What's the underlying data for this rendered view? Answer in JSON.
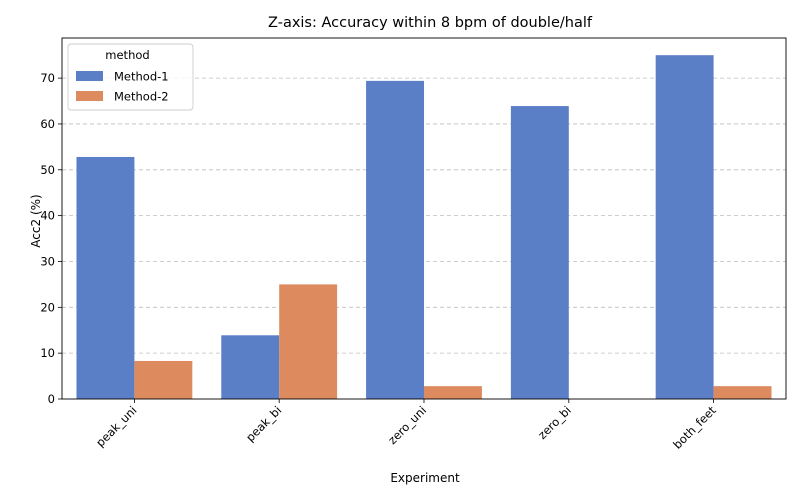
{
  "chart_data": {
    "type": "bar",
    "title": "Z-axis: Accuracy within 8 bpm of double/half",
    "xlabel": "Experiment",
    "ylabel": "Acc2 (%)",
    "categories": [
      "peak_uni",
      "peak_bi",
      "zero_uni",
      "zero_bi",
      "both_feet"
    ],
    "series": [
      {
        "name": "Method-1",
        "values": [
          52.8,
          13.9,
          69.4,
          63.9,
          75.0
        ],
        "color": "#5a7fc6"
      },
      {
        "name": "Method-2",
        "values": [
          8.3,
          25.0,
          2.8,
          0.0,
          2.8
        ],
        "color": "#dd8a5e"
      }
    ],
    "ylim": [
      0,
      78.75
    ],
    "yticks": [
      0,
      10,
      20,
      30,
      40,
      50,
      60,
      70
    ],
    "grid": "y-dashed",
    "legend": {
      "title": "method",
      "placement": "top-left"
    },
    "xtick_rotation_deg": 45
  }
}
